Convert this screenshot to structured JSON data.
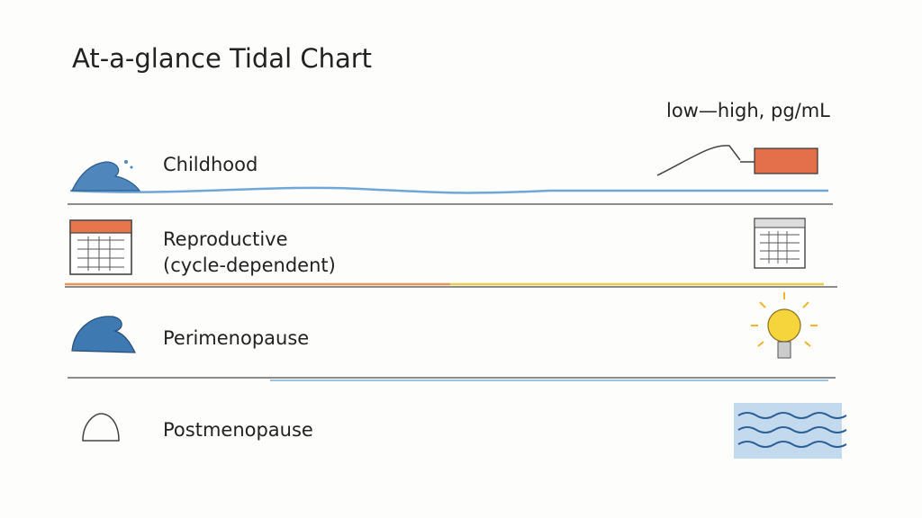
{
  "header": {
    "title": "At-a-glance Tidal Chart",
    "legend": "low—high, pg/mL"
  },
  "rows": [
    {
      "lines": [
        "Childhood"
      ]
    },
    {
      "lines": [
        "Reproductive",
        "(cycle-dependent)"
      ]
    },
    {
      "lines": [
        "Perimenopause"
      ]
    },
    {
      "lines": [
        "Postmenopause"
      ]
    }
  ]
}
